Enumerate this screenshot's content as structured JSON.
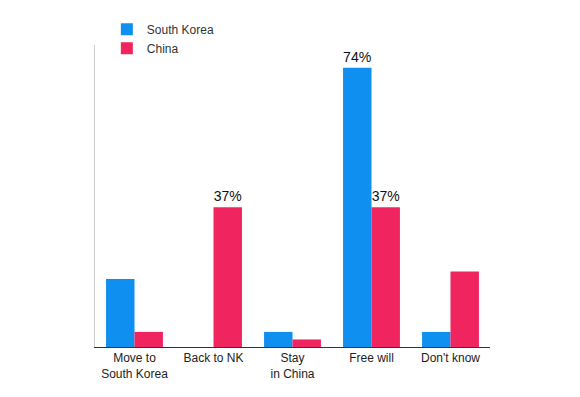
{
  "chart_data": {
    "type": "bar",
    "categories": [
      "Move to South Korea",
      "Back to NK",
      "Stay in China",
      "Free will",
      "Don't know"
    ],
    "series": [
      {
        "name": "South Korea",
        "color": "#0f8fef",
        "values": [
          18,
          0,
          4,
          74,
          4
        ],
        "value_labels": [
          null,
          null,
          null,
          "74%",
          null
        ]
      },
      {
        "name": "China",
        "color": "#f0245e",
        "values": [
          4,
          37,
          2,
          37,
          20
        ],
        "value_labels": [
          null,
          "37%",
          null,
          "37%",
          null
        ]
      }
    ],
    "ylim": [
      0,
      80
    ],
    "yticks": [],
    "grid": false,
    "legend": "top left",
    "data_labels": true,
    "tick_labels": "x"
  }
}
